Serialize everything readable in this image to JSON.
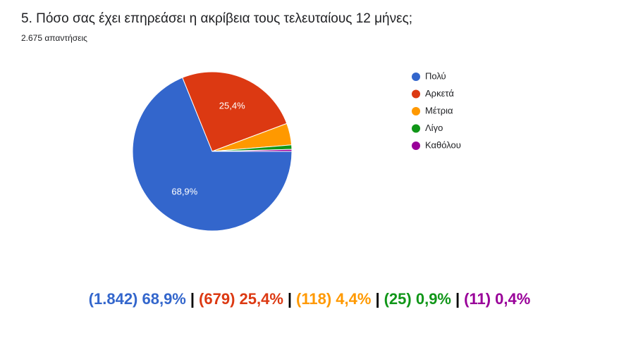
{
  "chart_data": {
    "type": "pie",
    "title": "5. Πόσο σας έχει επηρεάσει η ακρίβεια τους τελευταίους 12 μήνες;",
    "subtitle": "2.675 απαντήσεις",
    "categories": [
      "Πολύ",
      "Αρκετά",
      "Μέτρια",
      "Λίγο",
      "Καθόλου"
    ],
    "values": [
      68.9,
      25.4,
      4.4,
      0.9,
      0.4
    ],
    "value_labels": [
      "68,9%",
      "25,4%",
      null,
      null,
      null
    ],
    "colors": [
      "#3366cc",
      "#dc3912",
      "#ff9900",
      "#109618",
      "#990099"
    ],
    "legend": "right",
    "summary": [
      "(1.842) 68,9%",
      "(679) 25,4%",
      "(118) 4,4%",
      "(25) 0,9%",
      "(11) 0,4%"
    ],
    "separator": "|"
  }
}
